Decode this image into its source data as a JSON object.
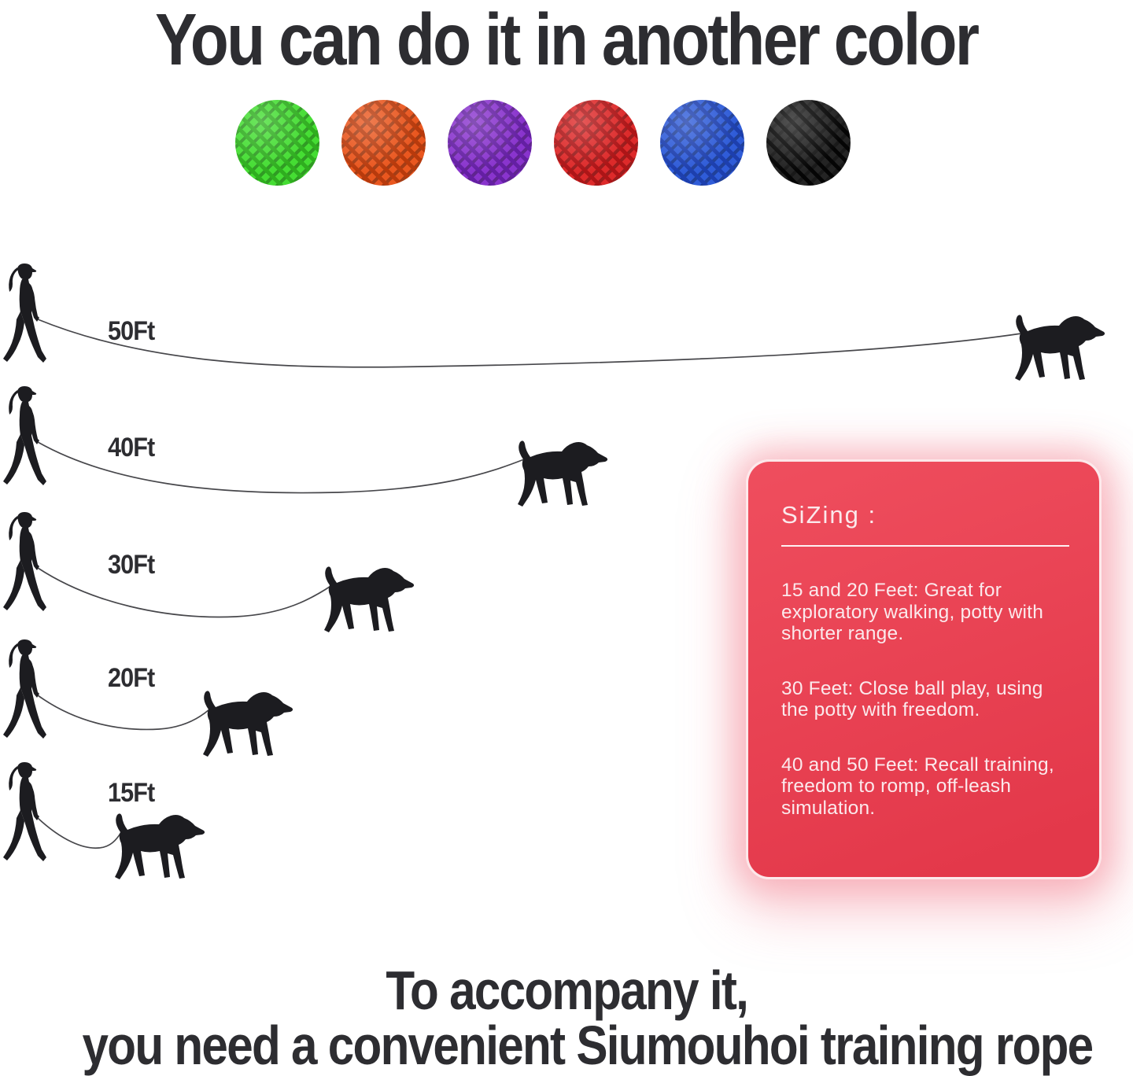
{
  "title": "You can do it in another color",
  "color_swatches": [
    {
      "name": "green",
      "hex": "#45dd33",
      "weave": "#2fae1f"
    },
    {
      "name": "orange",
      "hex": "#e9571f",
      "weave": "#b83a0c"
    },
    {
      "name": "purple",
      "hex": "#8934cd",
      "weave": "#641fa3"
    },
    {
      "name": "red",
      "hex": "#dd2a2a",
      "weave": "#ad1517"
    },
    {
      "name": "blue",
      "hex": "#2f5cd8",
      "weave": "#1d3fae"
    },
    {
      "name": "black",
      "hex": "#242424",
      "weave": "#050505"
    }
  ],
  "leash_rows": [
    {
      "label": "50Ft",
      "feet": 50
    },
    {
      "label": "40Ft",
      "feet": 40
    },
    {
      "label": "30Ft",
      "feet": 30
    },
    {
      "label": "20Ft",
      "feet": 20
    },
    {
      "label": "15Ft",
      "feet": 15
    }
  ],
  "sizing_card": {
    "heading": "SiZing :",
    "items": [
      "15 and 20 Feet: Great for\nexploratory walking, potty with\nshorter range.",
      "30 Feet: Close ball play, using\nthe potty with freedom.",
      "40 and 50 Feet: Recall training,\nfreedom to romp, off-leash\nsimulation."
    ]
  },
  "footer": {
    "line1": "To accompany it,",
    "line2": "you need a convenient Siumouhoi training rope"
  },
  "theme": {
    "ink": "#2d2d31",
    "silhouette": "#1c1c20",
    "leash_line": "#47474b",
    "card_top": "#ef4e5e",
    "card_bottom": "#e3384a",
    "card_text": "#fbe9ec"
  }
}
